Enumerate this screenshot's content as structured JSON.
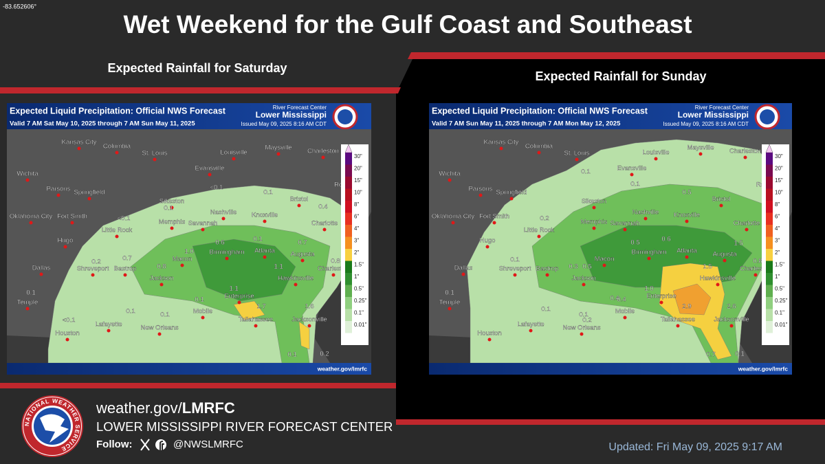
{
  "corner_label": "-83.652606°",
  "title": "Wet Weekend for the Gulf Coast and Southeast",
  "cities": [
    "Kansas City",
    "Columbia",
    "St. Louis",
    "Louisville",
    "Maysville",
    "Charleston",
    "Wichita",
    "Evansville",
    "Parsons",
    "Springfield",
    "Sikeston",
    "Roanoke",
    "Nashville",
    "Bristol",
    "Knoxville",
    "Oklahoma City",
    "Fort Smith",
    "Memphis",
    "Savannah",
    "Charlotte",
    "Little Rock",
    "Hugo",
    "Birmingham",
    "Atlanta",
    "Augusta",
    "Macon",
    "Dallas",
    "Shreveport",
    "Bastrop",
    "Jackson",
    "Hawkinsville",
    "Charleston",
    "Temple",
    "Enterprise",
    "Mobile",
    "Tallahassee",
    "Jacksonville",
    "Lafayette",
    "New Orleans",
    "Houston"
  ],
  "maps": [
    {
      "heading": "Expected Rainfall for Saturday",
      "map_title": "Expected Liquid Precipitation: Official NWS Forecast",
      "valid": "Valid 7 AM Sat May 10, 2025 through 7 AM Sun May 11, 2025",
      "rfc_label": "River Forecast Center",
      "rfc_name": "Lower Mississippi",
      "issued": "Issued May 09, 2025 8:16 AM CDT",
      "footer": "weather.gov/lmrfc",
      "amounts": [
        "<0.1",
        "0.1",
        "0.1",
        "0.4",
        "<0.1",
        "0.6",
        "0.1",
        "0.7",
        "1.0",
        "0.7",
        "0.2",
        "0.8",
        "1.1",
        "0.8",
        "1.1",
        "0.1",
        "0.1",
        "1.7",
        "1.6",
        "<0.1",
        "0.1",
        "0.1",
        "0.1",
        "0.2"
      ]
    },
    {
      "heading": "Expected Rainfall for Sunday",
      "map_title": "Expected Liquid Precipitation: Official NWS Forecast",
      "valid": "Valid 7 AM Sun May 11, 2025 through 7 AM Mon May 12, 2025",
      "rfc_label": "River Forecast Center",
      "rfc_name": "Lower Mississippi",
      "issued": "Issued May 09, 2025 8:16 AM CDT",
      "footer": "weather.gov/lmrfc",
      "amounts": [
        "0.1",
        "0.1",
        "0.1",
        "0.5",
        "0.2",
        "0.6",
        "0.5",
        "1.5",
        "0.5",
        "0.4",
        "0.1",
        "0.3",
        "1.5",
        "0.8",
        "1.0",
        "0.1",
        "0.4",
        "2.9",
        "2.6",
        "0.1",
        "0.1",
        "0.2",
        "0.7",
        "0.1"
      ]
    }
  ],
  "legend": [
    "30\"",
    "20\"",
    "15\"",
    "10\"",
    "8\"",
    "6\"",
    "4\"",
    "3\"",
    "2\"",
    "1.5\"",
    "1\"",
    "0.5\"",
    "0.25\"",
    "0.1\"",
    "0.01\""
  ],
  "logo_text": "NATIONAL WEATHER SERVICE",
  "footer": {
    "site_prefix": "weather.gov/",
    "site_bold": "LMRFC",
    "center": "LOWER MISSISSIPPI RIVER FORECAST CENTER",
    "follow": "Follow:",
    "handle": "@NWSLMRFC",
    "updated": "Updated: Fri May 09, 2025 9:17 AM"
  }
}
